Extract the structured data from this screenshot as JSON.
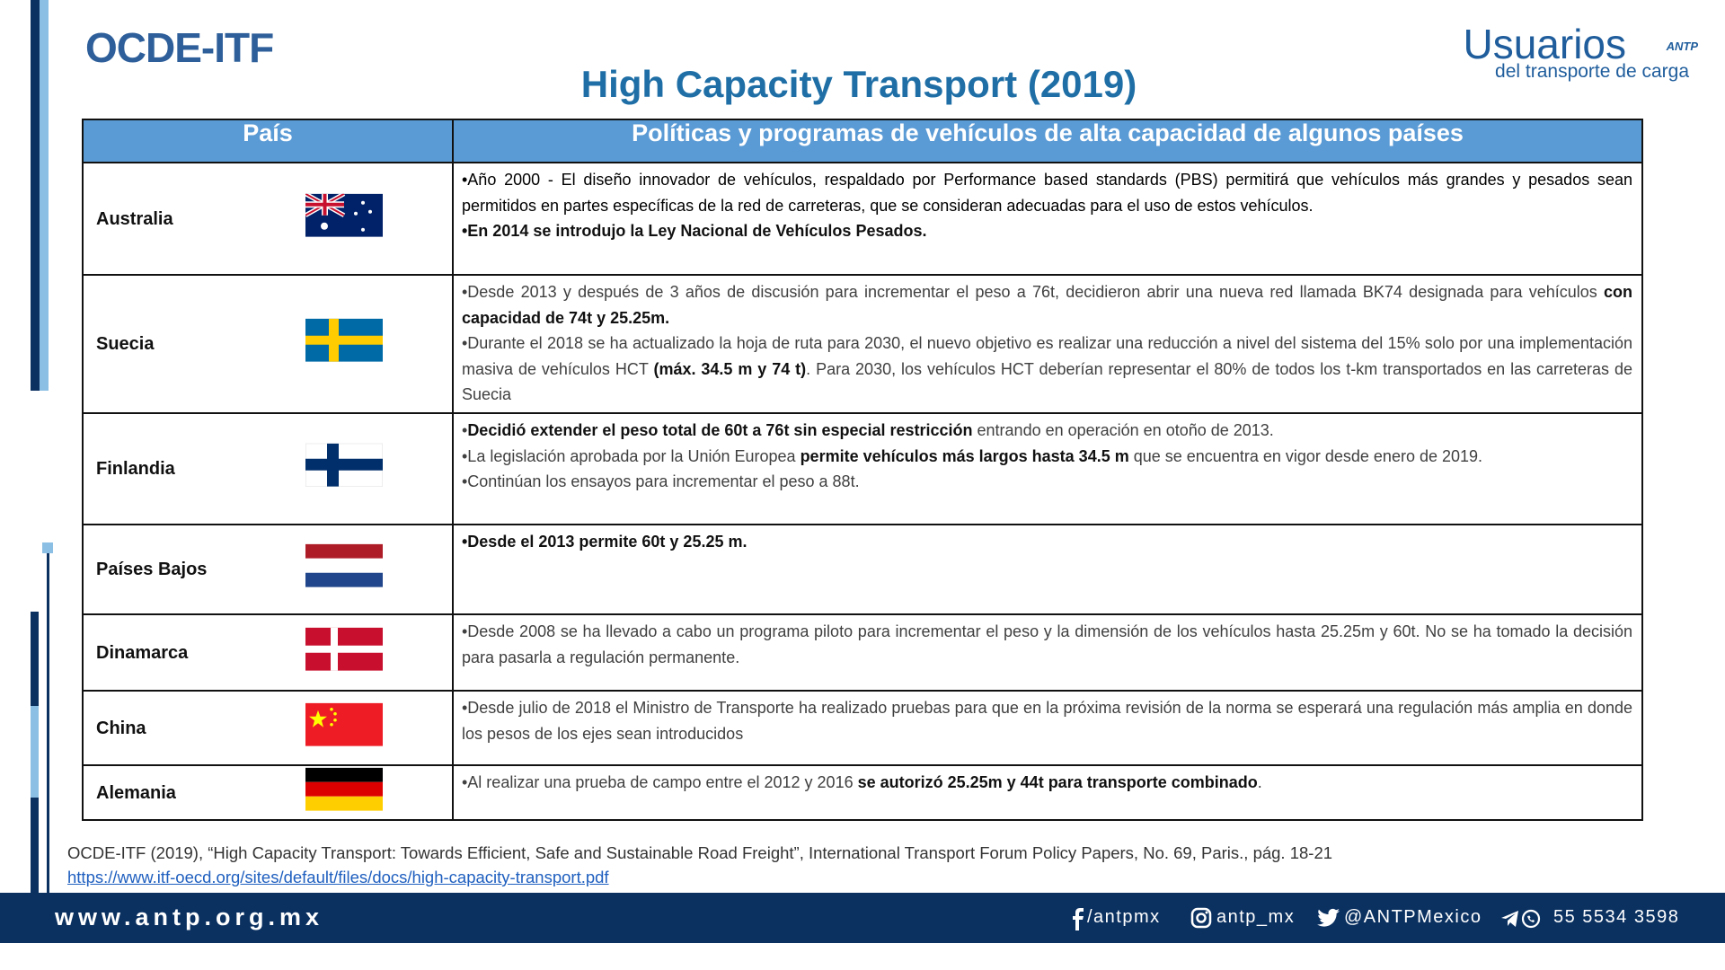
{
  "header": {
    "brand": "OCDE-ITF",
    "title": "High Capacity Transport (2019)",
    "logo": {
      "name": "Usuarios",
      "badge": "ANTP",
      "tagline": "del transporte de carga"
    }
  },
  "table": {
    "columns": [
      "País",
      "Políticas y programas de vehículos de alta capacidad de algunos países"
    ],
    "rows": [
      {
        "country": "Australia",
        "bullets": [
          [
            {
              "t": "•Año 2000 - El diseño innovador de vehículos, respaldado por Performance based standards (PBS) permitirá que vehículos más grandes y pesados sean permitidos en partes específicas de la red de carreteras, que se consideran adecuadas para el uso de estos vehículos."
            }
          ],
          [
            {
              "t": "•En 2014 se introdujo la Ley Nacional de Vehículos Pesados.",
              "b": true
            }
          ]
        ]
      },
      {
        "country": "Suecia",
        "bullets": [
          [
            {
              "t": "•Desde 2013 y después de 3 años de discusión para incrementar el peso a 76t, decidieron abrir una nueva red llamada BK74 designada para vehículos "
            },
            {
              "t": "con capacidad de 74t y 25.25m.",
              "b": true
            }
          ],
          [
            {
              "t": "•Durante el 2018 se ha actualizado la hoja de ruta para 2030, el nuevo objetivo es realizar una reducción a nivel del sistema del 15% solo por una implementación masiva de vehículos HCT "
            },
            {
              "t": "(máx. 34.5 m y 74 t)",
              "b": true
            },
            {
              "t": ". Para 2030, los vehículos HCT deberían representar el 80% de todos los t-km transportados en las carreteras de Suecia"
            }
          ]
        ]
      },
      {
        "country": "Finlandia",
        "bullets": [
          [
            {
              "t": "•"
            },
            {
              "t": "Decidió extender el peso total de 60t a 76t sin especial restricción",
              "b": true
            },
            {
              "t": " entrando en operación en otoño de 2013."
            }
          ],
          [
            {
              "t": "•La legislación aprobada por la Unión Europea "
            },
            {
              "t": "permite vehículos más largos hasta 34.5 m",
              "b": true
            },
            {
              "t": " que se encuentra en vigor desde enero de 2019."
            }
          ],
          [
            {
              "t": "•Continúan los ensayos para incrementar el peso a 88t."
            }
          ]
        ]
      },
      {
        "country": "Países Bajos",
        "bullets": [
          [
            {
              "t": "•Desde el 2013 permite 60t y 25.25 m.",
              "b": true
            }
          ]
        ]
      },
      {
        "country": "Dinamarca",
        "bullets": [
          [
            {
              "t": "•Desde 2008 se ha llevado a cabo un programa piloto para incrementar el peso y la dimensión de los vehículos hasta 25.25m y 60t. No se ha tomado la decisión para pasarla a regulación permanente."
            }
          ]
        ]
      },
      {
        "country": "China",
        "bullets": [
          [
            {
              "t": "•Desde julio de 2018 el Ministro de Transporte ha realizado pruebas para que en la próxima revisión de la norma se esperará una regulación más amplia en donde los pesos de los ejes sean introducidos"
            }
          ]
        ]
      },
      {
        "country": "Alemania",
        "bullets": [
          [
            {
              "t": "•Al realizar una prueba de campo entre el 2012 y 2016 "
            },
            {
              "t": "se autorizó 25.25m y 44t para transporte combinado",
              "b": true
            },
            {
              "t": "."
            }
          ]
        ]
      }
    ]
  },
  "citation": {
    "text": "OCDE-ITF (2019), “High Capacity Transport: Towards Efficient, Safe and Sustainable Road Freight”, International Transport Forum Policy Papers, No. 69, Paris., pág. 18-21",
    "url": "https://www.itf-oecd.org/sites/default/files/docs/high-capacity-transport.pdf"
  },
  "footer": {
    "website": "www.antp.org.mx",
    "facebook": "/antpmx",
    "instagram": "antp_mx",
    "twitter": "@ANTPMexico",
    "phone": "55 5534 3598"
  }
}
